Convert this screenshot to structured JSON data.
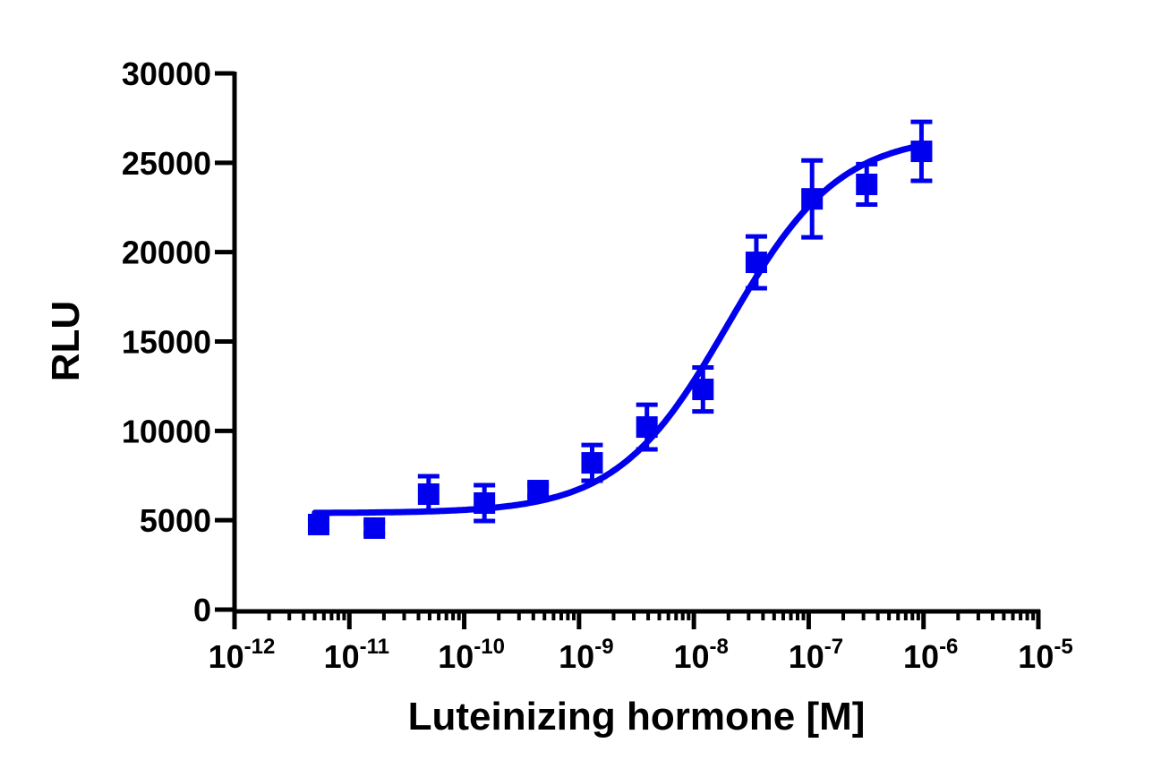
{
  "chart_data": {
    "type": "scatter",
    "title": "",
    "xlabel": "Luteinizing hormone [M]",
    "ylabel": "RLU",
    "xscale": "log",
    "xlim": [
      1e-12,
      1e-05
    ],
    "ylim": [
      0,
      30000
    ],
    "x_tick_labels": [
      {
        "base": "10",
        "exp": "-12"
      },
      {
        "base": "10",
        "exp": "-11"
      },
      {
        "base": "10",
        "exp": "-10"
      },
      {
        "base": "10",
        "exp": "-9"
      },
      {
        "base": "10",
        "exp": "-8"
      },
      {
        "base": "10",
        "exp": "-7"
      },
      {
        "base": "10",
        "exp": "-6"
      },
      {
        "base": "10",
        "exp": "-5"
      }
    ],
    "y_ticks": [
      "0",
      "5000",
      "10000",
      "15000",
      "20000",
      "25000",
      "30000"
    ],
    "grid": false,
    "color": "#0000ee",
    "marker": "square",
    "points": [
      {
        "x": 5.4e-12,
        "y": 4760,
        "err": 300
      },
      {
        "x": 1.65e-11,
        "y": 4560,
        "err": 300
      },
      {
        "x": 4.9e-11,
        "y": 6460,
        "err": 1000
      },
      {
        "x": 1.5e-10,
        "y": 5960,
        "err": 1000
      },
      {
        "x": 4.4e-10,
        "y": 6660,
        "err": 300
      },
      {
        "x": 1.3e-09,
        "y": 8210,
        "err": 1000
      },
      {
        "x": 3.9e-09,
        "y": 10215,
        "err": 1250
      },
      {
        "x": 1.2e-08,
        "y": 12320,
        "err": 1230
      },
      {
        "x": 3.5e-08,
        "y": 19430,
        "err": 1450
      },
      {
        "x": 1.07e-07,
        "y": 22980,
        "err": 2150
      },
      {
        "x": 3.2e-07,
        "y": 23790,
        "err": 1130
      },
      {
        "x": 9.6e-07,
        "y": 25640,
        "err": 1650
      }
    ],
    "fit": "sigmoidal dose-response curve"
  }
}
